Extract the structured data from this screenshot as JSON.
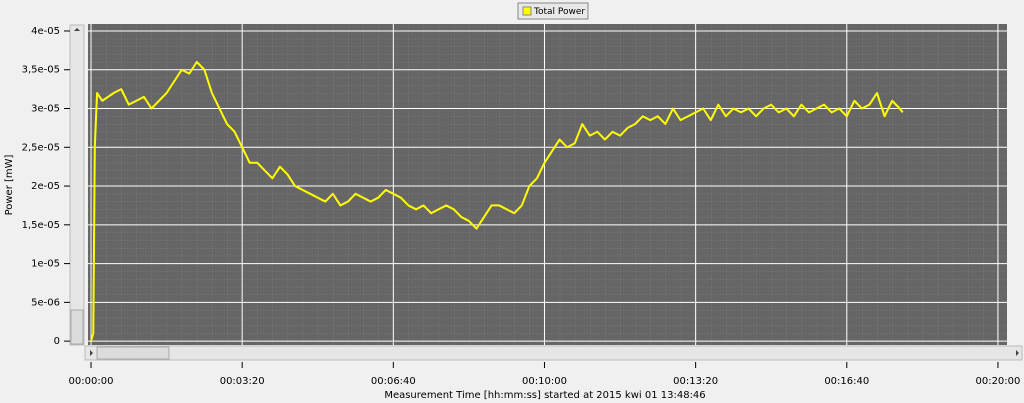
{
  "chart_data": {
    "type": "line",
    "y_label": "Power [mW]",
    "x_label": "Measurement Time [hh:mm:ss] started at 2015 kwi 01 13:48:46",
    "grid": true,
    "legend": "top",
    "xlim": [
      -4,
      1212
    ],
    "ylim": [
      -5e-07,
      4.09e-05
    ],
    "xticks": [
      {
        "value": 0,
        "label": "00:00:00"
      },
      {
        "value": 200,
        "label": "00:03:20"
      },
      {
        "value": 400,
        "label": "00:06:40"
      },
      {
        "value": 600,
        "label": "00:10:00"
      },
      {
        "value": 800,
        "label": "00:13:20"
      },
      {
        "value": 1000,
        "label": "00:16:40"
      },
      {
        "value": 1200,
        "label": "00:20:00"
      }
    ],
    "yticks": [
      0,
      {
        "value": 5e-06,
        "label": "5e-06"
      },
      {
        "value": 1e-05,
        "label": "1e-05"
      },
      {
        "value": 1.5e-05,
        "label": "1,5e-05"
      },
      {
        "value": 2e-05,
        "label": "2e-05"
      },
      {
        "value": 2.5e-05,
        "label": "2,5e-05"
      },
      {
        "value": 3e-05,
        "label": "3e-05"
      },
      {
        "value": 3.5e-05,
        "label": "3,5e-05"
      },
      {
        "value": 4e-05,
        "label": "4e-05"
      }
    ],
    "x": [
      0,
      3,
      5,
      8,
      15,
      30,
      40,
      50,
      60,
      70,
      80,
      90,
      100,
      110,
      120,
      130,
      140,
      150,
      160,
      170,
      180,
      190,
      200,
      210,
      220,
      230,
      240,
      250,
      260,
      270,
      280,
      290,
      300,
      310,
      320,
      330,
      340,
      350,
      360,
      370,
      380,
      390,
      400,
      410,
      420,
      430,
      440,
      450,
      460,
      470,
      480,
      490,
      500,
      510,
      520,
      530,
      540,
      550,
      560,
      570,
      580,
      590,
      600,
      610,
      620,
      630,
      640,
      650,
      660,
      670,
      680,
      690,
      700,
      710,
      720,
      730,
      740,
      750,
      760,
      770,
      780,
      790,
      800,
      810,
      820,
      830,
      840,
      850,
      860,
      870,
      880,
      890,
      900,
      910,
      920,
      930,
      940,
      950,
      960,
      970,
      980,
      990,
      1000,
      1010,
      1020,
      1030,
      1040,
      1050,
      1060,
      1070,
      1074
    ],
    "series": [
      {
        "name": "Total Power",
        "color": "#ffff00",
        "values": [
          0,
          1e-06,
          2.5e-05,
          3.2e-05,
          3.1e-05,
          3.2e-05,
          3.25e-05,
          3.05e-05,
          3.1e-05,
          3.15e-05,
          3e-05,
          3.1e-05,
          3.2e-05,
          3.35e-05,
          3.5e-05,
          3.45e-05,
          3.6e-05,
          3.5e-05,
          3.2e-05,
          3e-05,
          2.8e-05,
          2.7e-05,
          2.5e-05,
          2.3e-05,
          2.3e-05,
          2.2e-05,
          2.1e-05,
          2.25e-05,
          2.15e-05,
          2e-05,
          1.95e-05,
          1.9e-05,
          1.85e-05,
          1.8e-05,
          1.9e-05,
          1.75e-05,
          1.8e-05,
          1.9e-05,
          1.85e-05,
          1.8e-05,
          1.85e-05,
          1.95e-05,
          1.9e-05,
          1.85e-05,
          1.75e-05,
          1.7e-05,
          1.75e-05,
          1.65e-05,
          1.7e-05,
          1.75e-05,
          1.7e-05,
          1.6e-05,
          1.55e-05,
          1.45e-05,
          1.6e-05,
          1.75e-05,
          1.75e-05,
          1.7e-05,
          1.65e-05,
          1.75e-05,
          2e-05,
          2.1e-05,
          2.3e-05,
          2.45e-05,
          2.6e-05,
          2.5e-05,
          2.55e-05,
          2.8e-05,
          2.65e-05,
          2.7e-05,
          2.6e-05,
          2.7e-05,
          2.65e-05,
          2.75e-05,
          2.8e-05,
          2.9e-05,
          2.85e-05,
          2.9e-05,
          2.8e-05,
          3e-05,
          2.85e-05,
          2.9e-05,
          2.95e-05,
          3e-05,
          2.85e-05,
          3.05e-05,
          2.9e-05,
          3e-05,
          2.95e-05,
          3e-05,
          2.9e-05,
          3e-05,
          3.05e-05,
          2.95e-05,
          3e-05,
          2.9e-05,
          3.05e-05,
          2.95e-05,
          3e-05,
          3.05e-05,
          2.95e-05,
          3e-05,
          2.9e-05,
          3.1e-05,
          3e-05,
          3.05e-05,
          3.2e-05,
          2.9e-05,
          3.1e-05,
          3e-05,
          2.95e-05
        ]
      }
    ]
  }
}
